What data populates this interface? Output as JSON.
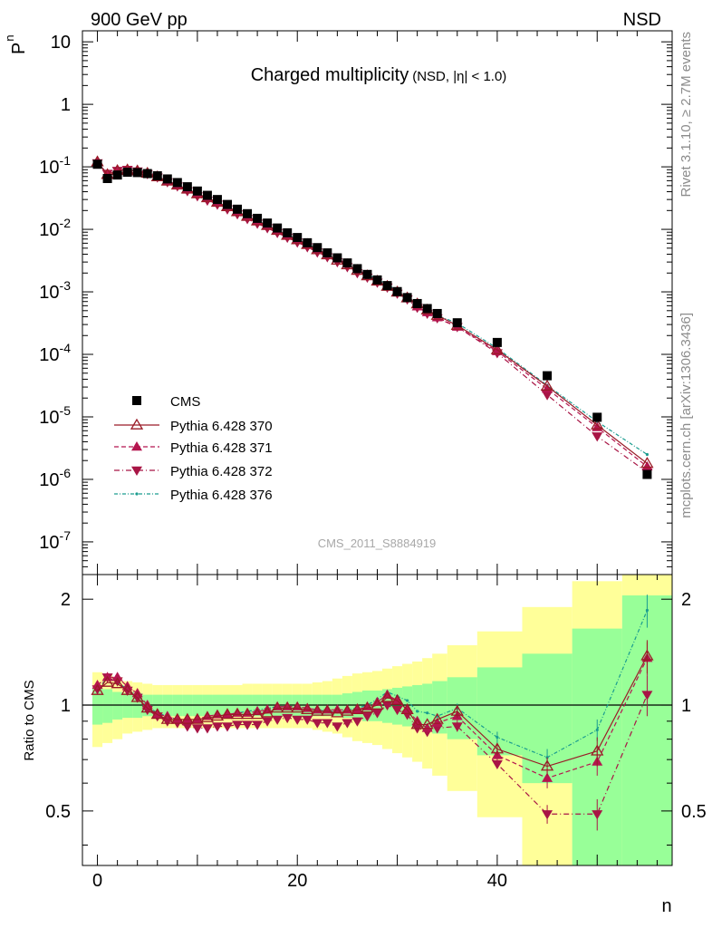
{
  "header": {
    "left_label": "900 GeV pp",
    "right_label": "NSD"
  },
  "title": {
    "main": "Charged multiplicity",
    "sub": "(NSD, |η| < 1.0)"
  },
  "analysis_label": "CMS_2011_S8884919",
  "side_labels": {
    "rivet": "Rivet 3.1.10, ≥ 2.7M events",
    "mcplots": "mcplots.cern.ch [arXiv:1306.3436]"
  },
  "axes": {
    "top_ylabel": "P",
    "top_ylabel_sub": "n",
    "bottom_ylabel": "Ratio to CMS",
    "xlabel": "n"
  },
  "colors": {
    "cms": "#000000",
    "p370": "#9a1b27",
    "p371": "#b5154f",
    "p372": "#a81545",
    "p376": "#1a9c8f",
    "band_inner": "#98ff98",
    "band_outer": "#ffff99"
  },
  "chart_data": [
    {
      "type": "scatter",
      "scale_y": "log",
      "xlim": [
        -1.5,
        57.5
      ],
      "ylim": [
        3e-08,
        15
      ],
      "xticks": [
        0,
        20,
        40
      ],
      "yticks": [
        {
          "value": 10,
          "label": "10"
        },
        {
          "value": 1,
          "label": "1"
        },
        {
          "value": 0.1,
          "base": "10",
          "exp": "-1"
        },
        {
          "value": 0.01,
          "base": "10",
          "exp": "-2"
        },
        {
          "value": 0.001,
          "base": "10",
          "exp": "-3"
        },
        {
          "value": 0.0001,
          "base": "10",
          "exp": "-4"
        },
        {
          "value": 1e-05,
          "base": "10",
          "exp": "-5"
        },
        {
          "value": 1e-06,
          "base": "10",
          "exp": "-6"
        },
        {
          "value": 1e-07,
          "base": "10",
          "exp": "-7"
        }
      ],
      "x": [
        0,
        1,
        2,
        3,
        4,
        5,
        6,
        7,
        8,
        9,
        10,
        11,
        12,
        13,
        14,
        15,
        16,
        17,
        18,
        19,
        20,
        21,
        22,
        23,
        24,
        25,
        26,
        27,
        28,
        29,
        30,
        31,
        32,
        33,
        34,
        36,
        40,
        45,
        50,
        55
      ],
      "series": [
        {
          "name": "CMS",
          "key": "cms",
          "marker": "square",
          "values": [
            0.11,
            0.065,
            0.074,
            0.082,
            0.081,
            0.078,
            0.072,
            0.064,
            0.056,
            0.048,
            0.041,
            0.035,
            0.03,
            0.025,
            0.021,
            0.0178,
            0.015,
            0.0126,
            0.0105,
            0.0088,
            0.0074,
            0.0061,
            0.0051,
            0.0042,
            0.0035,
            0.0029,
            0.00235,
            0.0019,
            0.00155,
            0.00126,
            0.00101,
            0.00081,
            0.00065,
            0.00054,
            0.00045,
            0.00032,
            0.000155,
            4.55e-05,
            9.85e-06,
            1.2e-06
          ]
        },
        {
          "name": "Pythia 6.428 370",
          "key": "p370",
          "marker": "triangle-up-open",
          "values": [
            0.12,
            0.075,
            0.087,
            0.089,
            0.086,
            0.079,
            0.069,
            0.059,
            0.051,
            0.044,
            0.037,
            0.032,
            0.027,
            0.023,
            0.0191,
            0.0161,
            0.0136,
            0.0115,
            0.0096,
            0.008,
            0.0068,
            0.0057,
            0.0047,
            0.0039,
            0.0032,
            0.0027,
            0.0022,
            0.0018,
            0.00148,
            0.00122,
            0.00099,
            0.0008,
            0.00064,
            0.00051,
            0.00042,
            0.00029,
            0.000118,
            3.1e-05,
            7.4e-06,
            1.8e-06
          ]
        },
        {
          "name": "Pythia 6.428 371",
          "key": "p371",
          "marker": "triangle-up",
          "values": [
            0.118,
            0.077,
            0.089,
            0.092,
            0.088,
            0.08,
            0.069,
            0.06,
            0.051,
            0.043,
            0.037,
            0.032,
            0.027,
            0.0225,
            0.0188,
            0.0158,
            0.0134,
            0.0114,
            0.0096,
            0.0081,
            0.0069,
            0.0058,
            0.0048,
            0.004,
            0.0034,
            0.0028,
            0.00228,
            0.00186,
            0.00152,
            0.00126,
            0.00102,
            0.00082,
            0.00058,
            0.00047,
            0.00039,
            0.000275,
            0.000112,
            2.8e-05,
            6.8e-06,
            1.6e-06
          ]
        },
        {
          "name": "Pythia 6.428 372",
          "key": "p372",
          "marker": "triangle-down",
          "values": [
            0.115,
            0.078,
            0.087,
            0.09,
            0.085,
            0.077,
            0.068,
            0.057,
            0.049,
            0.041,
            0.034,
            0.029,
            0.025,
            0.021,
            0.0175,
            0.0147,
            0.0124,
            0.0105,
            0.0088,
            0.0074,
            0.0062,
            0.0052,
            0.0043,
            0.0036,
            0.003,
            0.0025,
            0.002,
            0.0017,
            0.00141,
            0.00118,
            0.00094,
            0.00076,
            0.00056,
            0.00045,
            0.00038,
            0.000275,
            0.000105,
            2.25e-05,
            4.9e-06,
            1.3e-06
          ]
        },
        {
          "name": "Pythia 6.428 376",
          "key": "p376",
          "marker": "dot",
          "values": [
            0.12,
            0.077,
            0.088,
            0.091,
            0.087,
            0.079,
            0.07,
            0.06,
            0.051,
            0.044,
            0.037,
            0.032,
            0.027,
            0.023,
            0.0191,
            0.0161,
            0.0137,
            0.0117,
            0.0098,
            0.0082,
            0.007,
            0.0059,
            0.0049,
            0.004,
            0.0033,
            0.0028,
            0.0023,
            0.0019,
            0.0016,
            0.00131,
            0.00105,
            0.00084,
            0.00063,
            0.00051,
            0.00042,
            0.000315,
            0.000125,
            3.2e-05,
            8.4e-06,
            2.5e-06
          ]
        }
      ],
      "legend_placement": "lower-left"
    },
    {
      "type": "line",
      "scale_y": "log",
      "xlim": [
        -1.5,
        57.5
      ],
      "ylim": [
        0.35,
        2.35
      ],
      "xticks": [
        0,
        20,
        40
      ],
      "yticks": [
        0.5,
        1,
        2
      ],
      "reference_line": 1,
      "x": [
        0,
        1,
        2,
        3,
        4,
        5,
        6,
        7,
        8,
        9,
        10,
        11,
        12,
        13,
        14,
        15,
        16,
        17,
        18,
        19,
        20,
        21,
        22,
        23,
        24,
        25,
        26,
        27,
        28,
        29,
        30,
        31,
        32,
        33,
        34,
        36,
        40,
        45,
        50,
        55
      ],
      "series": [
        {
          "name": "Pythia 6.428 370",
          "key": "p370",
          "marker": "triangle-up-open",
          "values": [
            1.1,
            1.16,
            1.15,
            1.1,
            1.05,
            0.98,
            0.94,
            0.91,
            0.91,
            0.91,
            0.91,
            0.92,
            0.93,
            0.94,
            0.94,
            0.94,
            0.94,
            0.95,
            0.98,
            0.98,
            0.98,
            0.97,
            0.96,
            0.96,
            0.95,
            0.96,
            0.97,
            0.98,
            1.0,
            1.05,
            1.03,
            0.97,
            0.88,
            0.88,
            0.91,
            0.96,
            0.75,
            0.67,
            0.74,
            1.38
          ],
          "errors": [
            0,
            0,
            0,
            0,
            0,
            0,
            0,
            0,
            0,
            0,
            0,
            0,
            0,
            0,
            0,
            0,
            0,
            0,
            0,
            0,
            0,
            0,
            0,
            0,
            0,
            0,
            0,
            0,
            0,
            0,
            0,
            0,
            0,
            0,
            0,
            0.04,
            0.03,
            0.04,
            0.07,
            0.15
          ]
        },
        {
          "name": "Pythia 6.428 371",
          "key": "p371",
          "marker": "triangle-up",
          "values": [
            1.14,
            1.2,
            1.2,
            1.13,
            1.08,
            1.0,
            0.94,
            0.93,
            0.91,
            0.91,
            0.91,
            0.93,
            0.94,
            0.94,
            0.95,
            0.95,
            0.96,
            0.97,
            0.99,
            0.99,
            0.99,
            0.98,
            0.97,
            0.97,
            0.97,
            0.97,
            0.97,
            0.99,
            1.02,
            1.07,
            1.03,
            0.97,
            0.9,
            0.86,
            0.89,
            0.93,
            0.72,
            0.62,
            0.69,
            1.36
          ],
          "errors": [
            0,
            0,
            0,
            0,
            0,
            0,
            0,
            0,
            0,
            0,
            0,
            0,
            0,
            0,
            0,
            0,
            0,
            0,
            0,
            0,
            0,
            0,
            0,
            0,
            0,
            0,
            0,
            0,
            0,
            0,
            0,
            0,
            0,
            0,
            0,
            0.03,
            0.03,
            0.04,
            0.06,
            0.15
          ]
        },
        {
          "name": "Pythia 6.428 372",
          "key": "p372",
          "marker": "triangle-down",
          "values": [
            1.11,
            1.2,
            1.17,
            1.1,
            1.05,
            0.97,
            0.93,
            0.9,
            0.89,
            0.87,
            0.86,
            0.86,
            0.87,
            0.87,
            0.88,
            0.88,
            0.88,
            0.9,
            0.91,
            0.92,
            0.91,
            0.91,
            0.89,
            0.89,
            0.87,
            0.89,
            0.9,
            0.93,
            0.95,
            1.0,
            0.97,
            0.94,
            0.86,
            0.84,
            0.86,
            0.87,
            0.68,
            0.49,
            0.49,
            1.07
          ],
          "errors": [
            0,
            0,
            0,
            0,
            0,
            0,
            0,
            0,
            0,
            0,
            0,
            0,
            0,
            0,
            0,
            0,
            0,
            0,
            0,
            0,
            0,
            0,
            0,
            0,
            0,
            0,
            0,
            0,
            0,
            0,
            0,
            0,
            0,
            0,
            0,
            0.03,
            0.02,
            0.03,
            0.05,
            0.14
          ]
        },
        {
          "name": "Pythia 6.428 376",
          "key": "p376",
          "marker": "dot",
          "values": [
            1.1,
            1.2,
            1.16,
            1.11,
            1.07,
            0.99,
            0.95,
            0.93,
            0.91,
            0.91,
            0.91,
            0.92,
            0.93,
            0.94,
            0.95,
            0.96,
            0.97,
            0.98,
            0.99,
            0.99,
            0.99,
            0.98,
            0.97,
            0.96,
            0.96,
            0.97,
            0.98,
            1.0,
            1.04,
            1.09,
            1.06,
            1.03,
            0.96,
            0.95,
            0.93,
            0.98,
            0.81,
            0.71,
            0.85,
            1.86
          ],
          "errors": [
            0,
            0,
            0,
            0,
            0,
            0,
            0,
            0,
            0,
            0,
            0,
            0,
            0,
            0,
            0,
            0,
            0,
            0,
            0,
            0,
            0,
            0,
            0,
            0,
            0,
            0,
            0,
            0,
            0,
            0,
            0,
            0,
            0,
            0,
            0,
            0.03,
            0.03,
            0.04,
            0.06,
            0.2
          ]
        }
      ],
      "bands": {
        "edges": [
          -0.5,
          0.5,
          1.5,
          2.5,
          3.5,
          4.5,
          5.5,
          6.5,
          7.5,
          8.5,
          9.5,
          10.5,
          11.5,
          12.5,
          13.5,
          14.5,
          15.5,
          16.5,
          17.5,
          18.5,
          19.5,
          20.5,
          21.5,
          22.5,
          23.5,
          24.5,
          25.5,
          26.5,
          27.5,
          28.5,
          29.5,
          30.5,
          31.5,
          32.5,
          33.5,
          35,
          38,
          42.5,
          47.5,
          52.5,
          57.5
        ],
        "inner_lo": [
          0.88,
          0.89,
          0.91,
          0.92,
          0.92,
          0.93,
          0.93,
          0.93,
          0.93,
          0.93,
          0.93,
          0.93,
          0.93,
          0.93,
          0.93,
          0.93,
          0.93,
          0.93,
          0.93,
          0.93,
          0.93,
          0.93,
          0.93,
          0.93,
          0.93,
          0.92,
          0.91,
          0.9,
          0.9,
          0.89,
          0.88,
          0.87,
          0.86,
          0.85,
          0.83,
          0.8,
          0.72,
          0.6,
          0.35,
          0.35
        ],
        "inner_hi": [
          1.12,
          1.11,
          1.09,
          1.08,
          1.08,
          1.07,
          1.07,
          1.07,
          1.07,
          1.07,
          1.07,
          1.07,
          1.07,
          1.07,
          1.07,
          1.07,
          1.07,
          1.07,
          1.07,
          1.07,
          1.07,
          1.07,
          1.07,
          1.07,
          1.07,
          1.08,
          1.09,
          1.1,
          1.1,
          1.11,
          1.12,
          1.13,
          1.14,
          1.15,
          1.17,
          1.2,
          1.28,
          1.4,
          1.65,
          2.05
        ],
        "outer_lo": [
          0.76,
          0.78,
          0.8,
          0.83,
          0.84,
          0.85,
          0.86,
          0.86,
          0.86,
          0.86,
          0.86,
          0.86,
          0.86,
          0.86,
          0.86,
          0.86,
          0.86,
          0.86,
          0.86,
          0.86,
          0.86,
          0.86,
          0.85,
          0.84,
          0.83,
          0.81,
          0.79,
          0.78,
          0.77,
          0.75,
          0.73,
          0.71,
          0.69,
          0.66,
          0.63,
          0.57,
          0.48,
          0.35,
          0.35,
          0.35
        ],
        "outer_hi": [
          1.24,
          1.22,
          1.2,
          1.17,
          1.16,
          1.15,
          1.14,
          1.14,
          1.14,
          1.14,
          1.14,
          1.14,
          1.14,
          1.14,
          1.14,
          1.15,
          1.15,
          1.15,
          1.15,
          1.15,
          1.15,
          1.15,
          1.16,
          1.17,
          1.19,
          1.21,
          1.23,
          1.24,
          1.25,
          1.27,
          1.29,
          1.31,
          1.33,
          1.36,
          1.4,
          1.48,
          1.62,
          1.9,
          2.25,
          2.35
        ]
      }
    }
  ]
}
